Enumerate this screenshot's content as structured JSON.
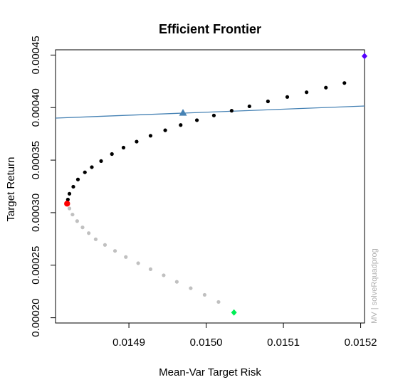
{
  "chart_data": {
    "type": "scatter",
    "title": "Efficient Frontier",
    "xlabel": "Mean-Var Target Risk",
    "ylabel": "Target Return",
    "side_note": "MV | solveRquadprog",
    "xlim": [
      0.014805,
      0.015205
    ],
    "ylim": [
      0.000195,
      0.000455
    ],
    "x_ticks": [
      0.0149,
      0.015,
      0.0151,
      0.0152
    ],
    "x_tick_labels": [
      "0.0149",
      "0.0150",
      "0.0151",
      "0.0152"
    ],
    "y_ticks": [
      0.0002,
      0.00025,
      0.0003,
      0.00035,
      0.0004,
      0.00045
    ],
    "y_tick_labels": [
      "0.00020",
      "0.00025",
      "0.00030",
      "0.00035",
      "0.00040",
      "0.00045"
    ],
    "grid": false,
    "colors": {
      "efficient": "#000000",
      "inefficient": "#c0c0c0",
      "minimum_variance": "#ff0000",
      "tangency": "#4682b4",
      "tangency_line": "#4682b4",
      "max_return": "#5500ff",
      "min_return": "#00ee55"
    },
    "series": [
      {
        "role": "efficient",
        "x": [
          0.014821,
          0.014823,
          0.014828,
          0.014834,
          0.014843,
          0.014852,
          0.014864,
          0.014878,
          0.014893,
          0.01491,
          0.014928,
          0.014947,
          0.014967,
          0.014988,
          0.01501,
          0.015033,
          0.015056,
          0.01508,
          0.015105,
          0.01513,
          0.015155,
          0.015179
        ],
        "y": [
          0.0003125,
          0.000318,
          0.0003247,
          0.0003316,
          0.0003384,
          0.0003433,
          0.0003491,
          0.0003558,
          0.0003619,
          0.0003676,
          0.0003732,
          0.0003784,
          0.0003834,
          0.000388,
          0.0003925,
          0.000397,
          0.0004012,
          0.0004059,
          0.0004101,
          0.0004146,
          0.000419,
          0.0004234
        ]
      },
      {
        "role": "inefficient",
        "x": [
          0.014823,
          0.014827,
          0.014833,
          0.01484,
          0.014848,
          0.014857,
          0.014869,
          0.014882,
          0.014896,
          0.014912,
          0.014928,
          0.014945,
          0.014962,
          0.01498,
          0.014998,
          0.015016
        ],
        "y": [
          0.000304,
          0.0002982,
          0.000292,
          0.000286,
          0.0002805,
          0.0002747,
          0.0002693,
          0.0002636,
          0.0002578,
          0.0002519,
          0.0002462,
          0.0002404,
          0.0002342,
          0.0002281,
          0.0002218,
          0.000215
        ]
      }
    ],
    "points": [
      {
        "role": "minimum_variance",
        "x": 0.01482,
        "y": 0.0003086
      },
      {
        "role": "tangency",
        "x": 0.01497,
        "y": 0.000395
      },
      {
        "role": "max_return",
        "x": 0.015205,
        "y": 0.000449
      },
      {
        "role": "min_return",
        "x": 0.015036,
        "y": 0.000205
      }
    ],
    "tangency_line": {
      "x": [
        0.014805,
        0.015205
      ],
      "y": [
        0.00039,
        0.0004015
      ]
    }
  }
}
